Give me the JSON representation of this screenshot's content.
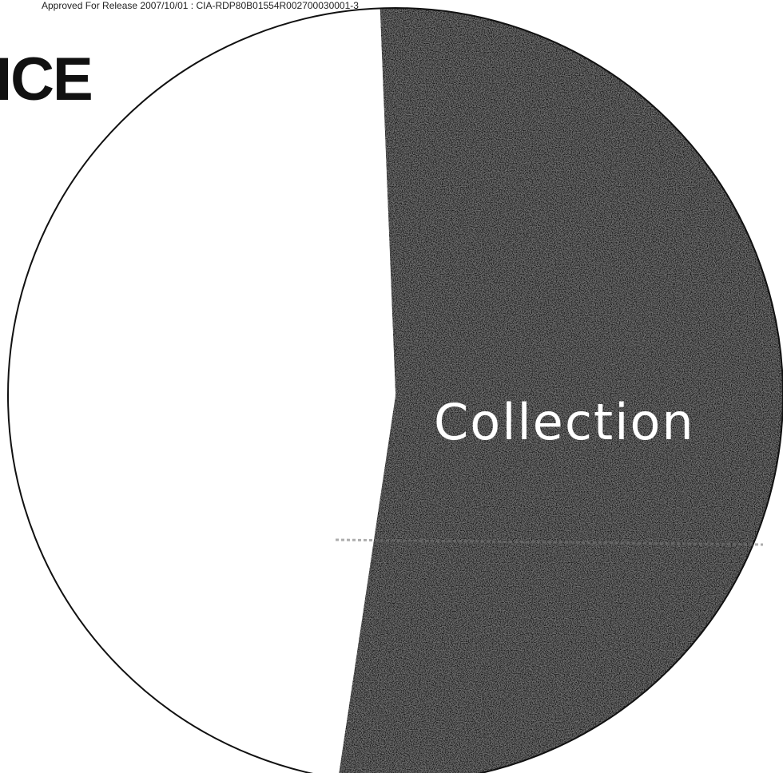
{
  "document": {
    "release_notice": "Approved For Release 2007/10/01 : CIA-RDP80B01554R002700030001-3",
    "heading_fragment": "ICE"
  },
  "chart_data": {
    "type": "pie",
    "slices": [
      {
        "label": "Collection",
        "value": 53,
        "color": "#141414"
      },
      {
        "label": "",
        "value": 47,
        "color": "#ffffff"
      }
    ]
  }
}
